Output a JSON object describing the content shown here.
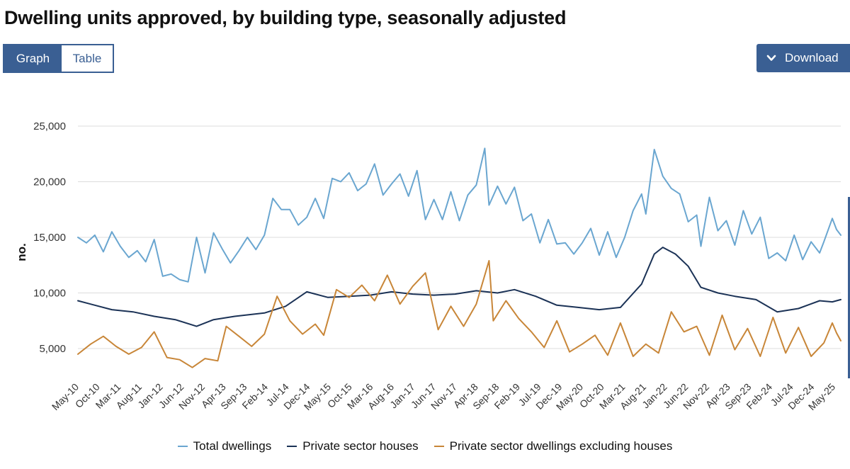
{
  "header": {
    "title": "Dwelling units approved, by building type, seasonally adjusted"
  },
  "toolbar": {
    "graph_label": "Graph",
    "table_label": "Table",
    "download_label": "Download"
  },
  "colors": {
    "total": "#6aa6d0",
    "houses": "#1b3256",
    "excl_houses": "#c88638",
    "accent": "#3a5f93"
  },
  "chart_data": {
    "type": "line",
    "ylabel": "no.",
    "ylim": [
      0,
      25000
    ],
    "yticks": [
      5000,
      10000,
      15000,
      20000,
      25000
    ],
    "ytick_labels": [
      "5,000",
      "10,000",
      "15,000",
      "20,000",
      "25,000"
    ],
    "x_tick_labels": [
      "May-10",
      "Oct-10",
      "Mar-11",
      "Aug-11",
      "Jan-12",
      "Jun-12",
      "Nov-12",
      "Apr-13",
      "Sep-13",
      "Feb-14",
      "Jul-14",
      "Dec-14",
      "May-15",
      "Oct-15",
      "Mar-16",
      "Aug-16",
      "Jan-17",
      "Jun-17",
      "Nov-17",
      "Apr-18",
      "Sep-18",
      "Feb-19",
      "Jul-19",
      "Dec-19",
      "May-20",
      "Oct-20",
      "Mar-21",
      "Aug-21",
      "Jan-22",
      "Jun-22",
      "Nov-22",
      "Apr-23",
      "Sep-23",
      "Feb-24",
      "Jul-24",
      "Dec-24",
      "May-25"
    ],
    "x_start": "2010-05",
    "x_end": "2025-05",
    "grid": "horizontal",
    "legend_position": "bottom",
    "series": [
      {
        "name": "Total dwellings",
        "color": "#6aa6d0",
        "anchors": [
          [
            "2010-05",
            15000
          ],
          [
            "2010-07",
            14500
          ],
          [
            "2010-09",
            15200
          ],
          [
            "2010-11",
            13700
          ],
          [
            "2011-01",
            15500
          ],
          [
            "2011-03",
            14200
          ],
          [
            "2011-05",
            13200
          ],
          [
            "2011-07",
            13800
          ],
          [
            "2011-09",
            12800
          ],
          [
            "2011-11",
            14800
          ],
          [
            "2012-01",
            11500
          ],
          [
            "2012-03",
            11700
          ],
          [
            "2012-05",
            11200
          ],
          [
            "2012-07",
            11000
          ],
          [
            "2012-09",
            15000
          ],
          [
            "2012-11",
            11800
          ],
          [
            "2013-01",
            15400
          ],
          [
            "2013-03",
            14000
          ],
          [
            "2013-05",
            12700
          ],
          [
            "2013-07",
            13800
          ],
          [
            "2013-09",
            15000
          ],
          [
            "2013-11",
            13900
          ],
          [
            "2014-01",
            15200
          ],
          [
            "2014-03",
            18500
          ],
          [
            "2014-05",
            17500
          ],
          [
            "2014-07",
            17500
          ],
          [
            "2014-09",
            16100
          ],
          [
            "2014-11",
            16800
          ],
          [
            "2015-01",
            18500
          ],
          [
            "2015-03",
            16700
          ],
          [
            "2015-05",
            20300
          ],
          [
            "2015-07",
            20000
          ],
          [
            "2015-09",
            20800
          ],
          [
            "2015-11",
            19200
          ],
          [
            "2016-01",
            19800
          ],
          [
            "2016-03",
            21600
          ],
          [
            "2016-05",
            18800
          ],
          [
            "2016-07",
            19800
          ],
          [
            "2016-09",
            20700
          ],
          [
            "2016-11",
            18700
          ],
          [
            "2017-01",
            21000
          ],
          [
            "2017-03",
            16600
          ],
          [
            "2017-05",
            18400
          ],
          [
            "2017-07",
            16600
          ],
          [
            "2017-09",
            19100
          ],
          [
            "2017-11",
            16500
          ],
          [
            "2018-01",
            18800
          ],
          [
            "2018-03",
            19700
          ],
          [
            "2018-05",
            23000
          ],
          [
            "2018-06",
            17900
          ],
          [
            "2018-08",
            19600
          ],
          [
            "2018-10",
            18000
          ],
          [
            "2018-12",
            19500
          ],
          [
            "2019-02",
            16500
          ],
          [
            "2019-04",
            17100
          ],
          [
            "2019-06",
            14500
          ],
          [
            "2019-08",
            16600
          ],
          [
            "2019-10",
            14400
          ],
          [
            "2019-12",
            14500
          ],
          [
            "2020-02",
            13500
          ],
          [
            "2020-04",
            14500
          ],
          [
            "2020-06",
            15800
          ],
          [
            "2020-08",
            13400
          ],
          [
            "2020-10",
            15500
          ],
          [
            "2020-12",
            13200
          ],
          [
            "2021-02",
            15000
          ],
          [
            "2021-04",
            17400
          ],
          [
            "2021-06",
            18900
          ],
          [
            "2021-07",
            17100
          ],
          [
            "2021-09",
            22900
          ],
          [
            "2021-11",
            20500
          ],
          [
            "2022-01",
            19400
          ],
          [
            "2022-03",
            18900
          ],
          [
            "2022-05",
            16400
          ],
          [
            "2022-07",
            17000
          ],
          [
            "2022-08",
            14200
          ],
          [
            "2022-10",
            18600
          ],
          [
            "2022-12",
            15600
          ],
          [
            "2023-02",
            16500
          ],
          [
            "2023-04",
            14300
          ],
          [
            "2023-06",
            17400
          ],
          [
            "2023-08",
            15300
          ],
          [
            "2023-10",
            16800
          ],
          [
            "2023-12",
            13100
          ],
          [
            "2024-02",
            13600
          ],
          [
            "2024-04",
            12900
          ],
          [
            "2024-06",
            15200
          ],
          [
            "2024-08",
            13000
          ],
          [
            "2024-10",
            14600
          ],
          [
            "2024-12",
            13600
          ],
          [
            "2025-01",
            14600
          ],
          [
            "2025-03",
            16700
          ],
          [
            "2025-04",
            15700
          ],
          [
            "2025-05",
            15200
          ]
        ]
      },
      {
        "name": "Private sector houses",
        "color": "#1b3256",
        "anchors": [
          [
            "2010-05",
            9300
          ],
          [
            "2010-09",
            8900
          ],
          [
            "2011-01",
            8500
          ],
          [
            "2011-06",
            8300
          ],
          [
            "2011-11",
            7900
          ],
          [
            "2012-04",
            7600
          ],
          [
            "2012-09",
            7000
          ],
          [
            "2013-01",
            7600
          ],
          [
            "2013-06",
            7900
          ],
          [
            "2014-01",
            8200
          ],
          [
            "2014-06",
            8800
          ],
          [
            "2014-11",
            10100
          ],
          [
            "2015-04",
            9600
          ],
          [
            "2015-09",
            9700
          ],
          [
            "2016-02",
            9800
          ],
          [
            "2016-07",
            10100
          ],
          [
            "2016-12",
            9900
          ],
          [
            "2017-05",
            9800
          ],
          [
            "2017-10",
            9900
          ],
          [
            "2018-03",
            10200
          ],
          [
            "2018-08",
            10000
          ],
          [
            "2018-12",
            10300
          ],
          [
            "2019-05",
            9700
          ],
          [
            "2019-10",
            8900
          ],
          [
            "2020-03",
            8700
          ],
          [
            "2020-08",
            8500
          ],
          [
            "2021-01",
            8700
          ],
          [
            "2021-06",
            10800
          ],
          [
            "2021-09",
            13500
          ],
          [
            "2021-11",
            14100
          ],
          [
            "2022-02",
            13500
          ],
          [
            "2022-05",
            12400
          ],
          [
            "2022-08",
            10500
          ],
          [
            "2022-12",
            10000
          ],
          [
            "2023-04",
            9700
          ],
          [
            "2023-09",
            9400
          ],
          [
            "2024-02",
            8300
          ],
          [
            "2024-07",
            8600
          ],
          [
            "2024-12",
            9300
          ],
          [
            "2025-03",
            9200
          ],
          [
            "2025-05",
            9400
          ]
        ]
      },
      {
        "name": "Private sector dwellings excluding houses",
        "color": "#c88638",
        "anchors": [
          [
            "2010-05",
            4500
          ],
          [
            "2010-08",
            5400
          ],
          [
            "2010-11",
            6100
          ],
          [
            "2011-02",
            5200
          ],
          [
            "2011-05",
            4500
          ],
          [
            "2011-08",
            5100
          ],
          [
            "2011-11",
            6500
          ],
          [
            "2012-02",
            4200
          ],
          [
            "2012-05",
            4000
          ],
          [
            "2012-08",
            3300
          ],
          [
            "2012-11",
            4100
          ],
          [
            "2013-02",
            3900
          ],
          [
            "2013-04",
            7000
          ],
          [
            "2013-07",
            6100
          ],
          [
            "2013-10",
            5200
          ],
          [
            "2014-01",
            6300
          ],
          [
            "2014-04",
            9700
          ],
          [
            "2014-07",
            7500
          ],
          [
            "2014-10",
            6300
          ],
          [
            "2015-01",
            7200
          ],
          [
            "2015-03",
            6200
          ],
          [
            "2015-06",
            10300
          ],
          [
            "2015-09",
            9600
          ],
          [
            "2015-12",
            10700
          ],
          [
            "2016-03",
            9300
          ],
          [
            "2016-06",
            11600
          ],
          [
            "2016-09",
            9000
          ],
          [
            "2016-12",
            10600
          ],
          [
            "2017-03",
            11800
          ],
          [
            "2017-06",
            6700
          ],
          [
            "2017-09",
            8800
          ],
          [
            "2017-12",
            7000
          ],
          [
            "2018-03",
            9000
          ],
          [
            "2018-06",
            12900
          ],
          [
            "2018-07",
            7500
          ],
          [
            "2018-10",
            9300
          ],
          [
            "2019-01",
            7700
          ],
          [
            "2019-04",
            6500
          ],
          [
            "2019-07",
            5100
          ],
          [
            "2019-10",
            7500
          ],
          [
            "2020-01",
            4700
          ],
          [
            "2020-04",
            5400
          ],
          [
            "2020-07",
            6200
          ],
          [
            "2020-10",
            4400
          ],
          [
            "2021-01",
            7300
          ],
          [
            "2021-04",
            4300
          ],
          [
            "2021-07",
            5400
          ],
          [
            "2021-10",
            4600
          ],
          [
            "2022-01",
            8300
          ],
          [
            "2022-04",
            6500
          ],
          [
            "2022-07",
            7000
          ],
          [
            "2022-10",
            4400
          ],
          [
            "2023-01",
            8000
          ],
          [
            "2023-04",
            4900
          ],
          [
            "2023-07",
            6800
          ],
          [
            "2023-10",
            4300
          ],
          [
            "2024-01",
            7800
          ],
          [
            "2024-04",
            4600
          ],
          [
            "2024-07",
            6900
          ],
          [
            "2024-10",
            4300
          ],
          [
            "2025-01",
            5500
          ],
          [
            "2025-03",
            7300
          ],
          [
            "2025-04",
            6400
          ],
          [
            "2025-05",
            5700
          ]
        ]
      }
    ]
  }
}
